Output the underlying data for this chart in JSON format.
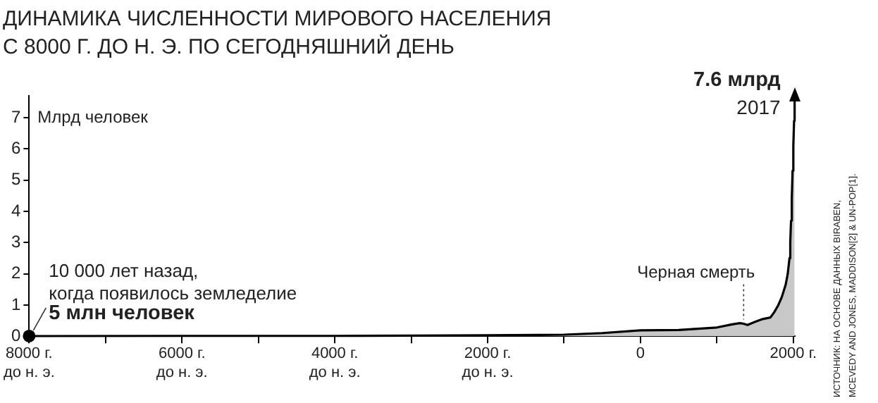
{
  "chart_data": {
    "type": "area",
    "title": "ДИНАМИКА ЧИСЛЕННОСТИ МИРОВОГО НАСЕЛЕНИЯ\nС 8000 Г. ДО Н. Э. ПО СЕГОДНЯШНИЙ ДЕНЬ",
    "ylabel": "Млрд человек",
    "series": [
      {
        "color": "#c8c8c8",
        "x": [
          -8000,
          -6000,
          -5000,
          -4000,
          -3000,
          -2000,
          -1000,
          -500,
          0,
          500,
          1000,
          1200,
          1300,
          1350,
          1400,
          1500,
          1600,
          1700,
          1750,
          1800,
          1850,
          1900,
          1927,
          1950,
          1960,
          1970,
          1980,
          1990,
          2000,
          2010,
          2017
        ],
        "values": [
          0.005,
          0.01,
          0.01,
          0.01,
          0.02,
          0.03,
          0.05,
          0.1,
          0.19,
          0.2,
          0.28,
          0.38,
          0.42,
          0.4,
          0.36,
          0.46,
          0.55,
          0.6,
          0.77,
          0.98,
          1.26,
          1.65,
          2.0,
          2.5,
          3.0,
          3.7,
          4.4,
          5.3,
          6.1,
          6.9,
          7.6
        ]
      },
      {
        "type": "scatter",
        "color": "#000000",
        "marker": "circle",
        "x": [
          -8000
        ],
        "values": [
          0.005
        ]
      }
    ],
    "xlim": [
      -8000,
      2020
    ],
    "xticks": [
      {
        "value": -8000,
        "label": "8000 г.\nдо н. э."
      },
      {
        "value": -7000,
        "label": null
      },
      {
        "value": -6000,
        "label": "6000 г.\nдо н. э."
      },
      {
        "value": -5000,
        "label": null
      },
      {
        "value": -4000,
        "label": "4000 г.\nдо н. э."
      },
      {
        "value": -3000,
        "label": null
      },
      {
        "value": -2000,
        "label": "2000 г.\nдо н. э."
      },
      {
        "value": -1000,
        "label": null
      },
      0,
      {
        "value": 1000,
        "label": null
      },
      {
        "value": 2000,
        "label": "2000 г."
      }
    ],
    "ylim": [
      0,
      7.7
    ],
    "yticks": [
      0,
      1,
      2,
      3,
      4,
      5,
      6,
      7
    ],
    "grid": false,
    "legend": false,
    "annotations": [
      {
        "text": "10 000 лет назад,\nкогда появилось земледелие",
        "x": -8000,
        "y": 0.005
      },
      {
        "text": "5 млн человек",
        "x": -8000,
        "y": 0.005
      },
      {
        "text": "7.6 млрд",
        "x": 2017,
        "y": 7.6
      },
      {
        "text": "2017",
        "x": 2017,
        "y": 7.6
      },
      {
        "text": "Черная смерть",
        "x": 1350,
        "y": 0.4
      },
      "ИСТОЧНИК: НА ОСНОВЕ ДАННЫХ BIRABEN,\nMCEVEDY AND JONES, MADDISON[2] & UN-POP[1]."
    ]
  }
}
